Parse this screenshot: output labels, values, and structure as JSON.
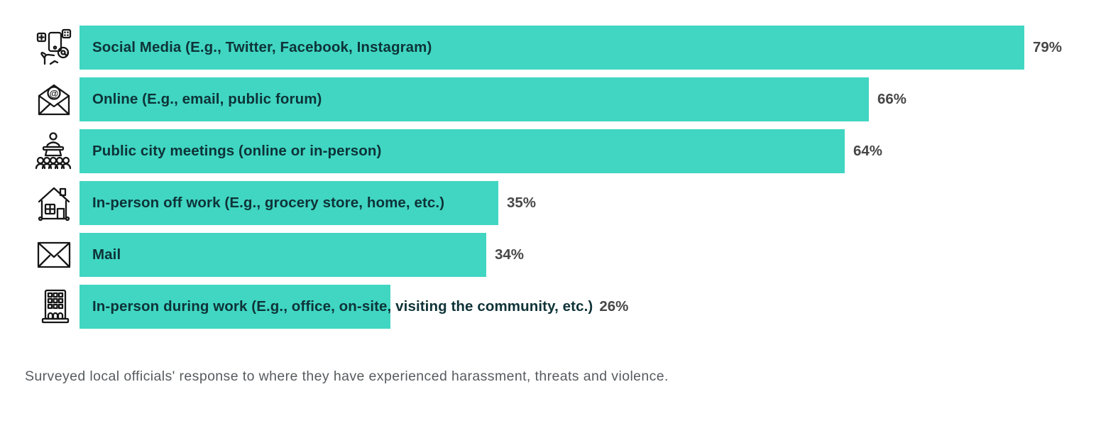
{
  "chart_data": {
    "type": "bar",
    "orientation": "horizontal",
    "title": "",
    "caption": "Surveyed local officials' response to where they have experienced harassment, threats and violence.",
    "categories": [
      "Social Media (E.g., Twitter, Facebook, Instagram)",
      "Online (E.g., email, public forum)",
      "Public city meetings (online or in-person)",
      "In-person off work (E.g., grocery store, home, etc.)",
      "Mail",
      "In-person during work (E.g., office, on-site, visiting the community, etc.)"
    ],
    "values": [
      79,
      66,
      64,
      35,
      34,
      26
    ],
    "value_labels": [
      "79%",
      "66%",
      "64%",
      "35%",
      "34%",
      "26%"
    ],
    "icons": [
      "social-media-icon",
      "online-envelope-icon",
      "public-meeting-podium-icon",
      "house-icon",
      "mail-envelope-icon",
      "office-building-icon"
    ],
    "bar_color": "#40d6c2",
    "label_color": "#0e3338",
    "value_label_color": "#474747",
    "xlim": [
      0,
      100
    ],
    "grid": false,
    "legend": false
  }
}
